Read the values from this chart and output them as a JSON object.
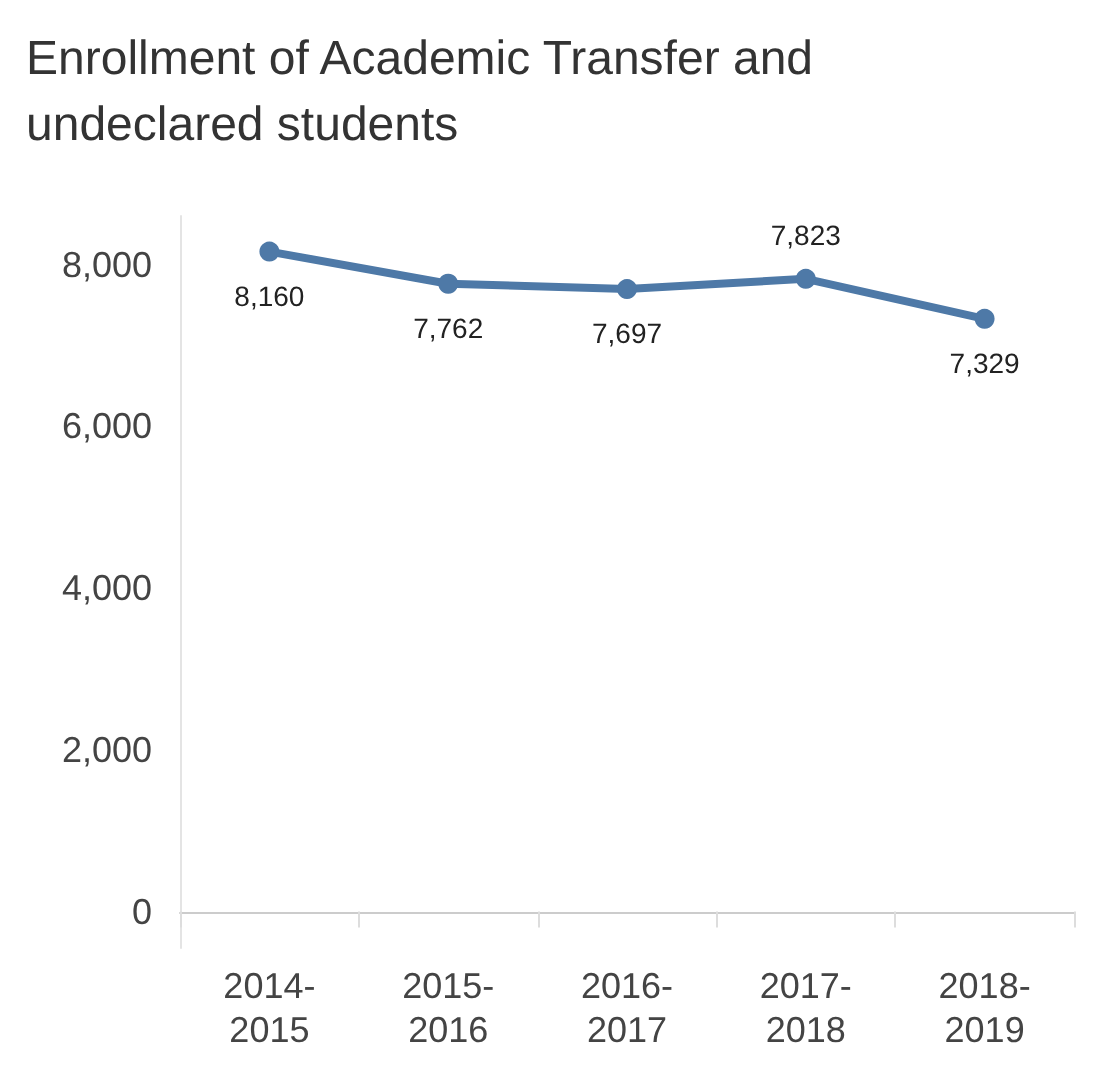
{
  "chart_data": {
    "type": "line",
    "title": "Enrollment of Academic Transfer and\nundeclared students",
    "categories": [
      "2014-2015",
      "2015-2016",
      "2016-2017",
      "2017-2018",
      "2018-2019"
    ],
    "series": [
      {
        "color": "#4e79a7",
        "values": [
          8160,
          7762,
          7697,
          7823,
          7329
        ],
        "value_labels": [
          "8,160",
          "7,762",
          "7,697",
          "7,823",
          "7,329"
        ]
      }
    ],
    "ylim": [
      -450,
      8600
    ],
    "yticks": [
      {
        "value": 0,
        "label": "0"
      },
      {
        "value": 2000,
        "label": "2,000"
      },
      {
        "value": 4000,
        "label": "4,000"
      },
      {
        "value": 6000,
        "label": "6,000"
      },
      {
        "value": 8000,
        "label": "8,000"
      }
    ],
    "marker": "circle",
    "line_style": "solid"
  }
}
